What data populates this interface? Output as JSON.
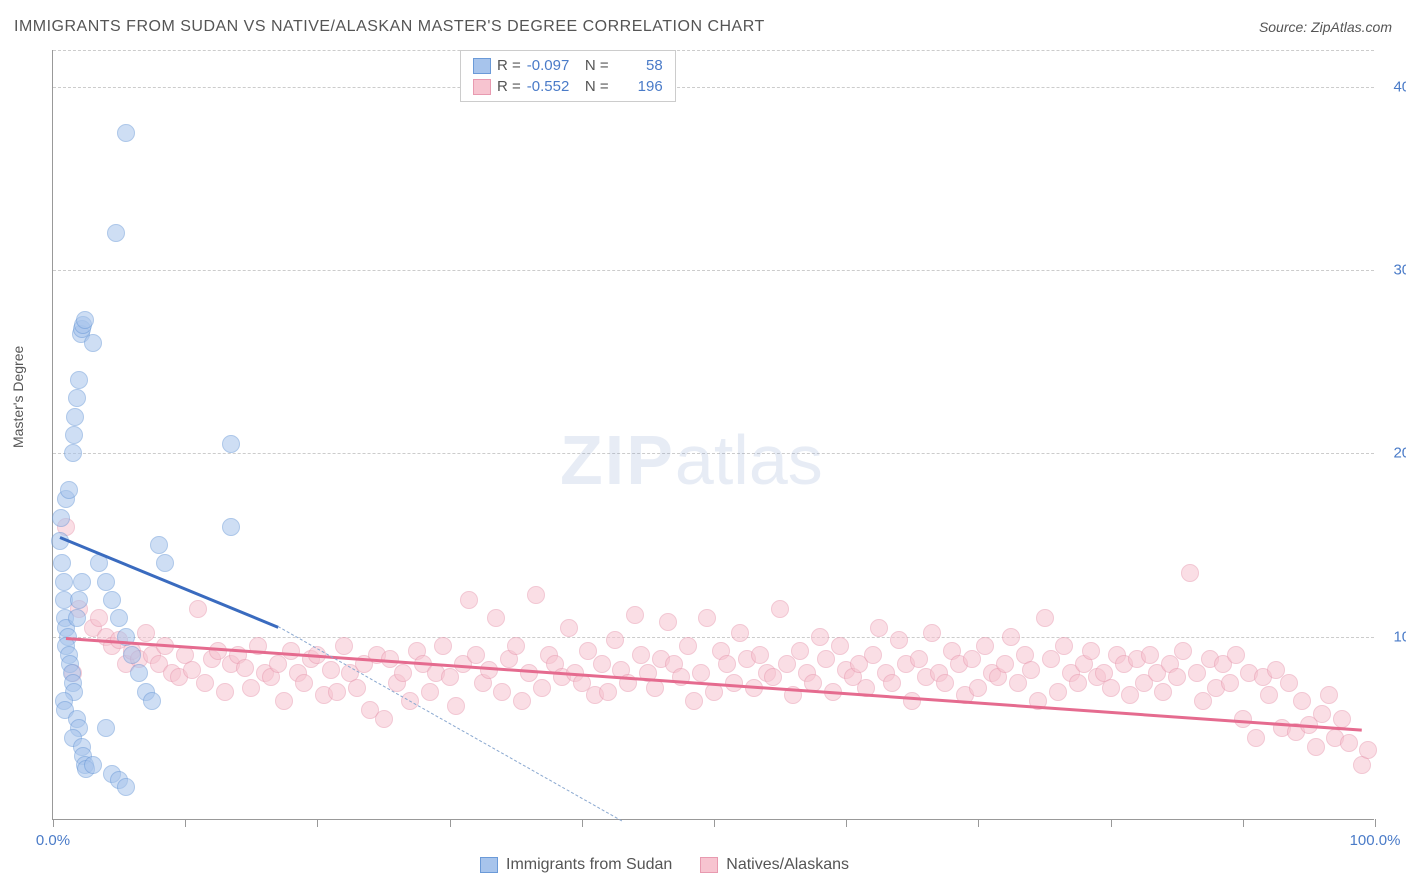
{
  "title": "IMMIGRANTS FROM SUDAN VS NATIVE/ALASKAN MASTER'S DEGREE CORRELATION CHART",
  "source": "Source: ZipAtlas.com",
  "ylabel": "Master's Degree",
  "watermark_zip": "ZIP",
  "watermark_atlas": "atlas",
  "chart": {
    "type": "scatter",
    "xlim": [
      0,
      100
    ],
    "ylim": [
      0,
      42
    ],
    "background_color": "#ffffff",
    "grid_color": "#cccccc",
    "axis_color": "#999999",
    "tick_label_color": "#4a7bc8",
    "yticks": [
      10,
      20,
      30,
      40
    ],
    "ytick_labels": [
      "10.0%",
      "20.0%",
      "30.0%",
      "40.0%"
    ],
    "xticks": [
      0,
      10,
      20,
      30,
      40,
      50,
      60,
      70,
      80,
      90,
      100
    ],
    "xtick_labels_shown": {
      "0": "0.0%",
      "100": "100.0%"
    },
    "marker_radius": 9,
    "marker_opacity": 0.55,
    "label_fontsize": 14,
    "tick_fontsize": 15,
    "title_fontsize": 16
  },
  "series": {
    "sudan": {
      "label": "Immigrants from Sudan",
      "fill_color": "#a7c4ec",
      "stroke_color": "#6b9ad8",
      "R": "-0.097",
      "N": "58",
      "trend": {
        "x1": 0.5,
        "y1": 15.5,
        "x2": 17,
        "y2": 10.6,
        "color": "#3a6bbf",
        "width": 3
      },
      "trend_dashed": {
        "x1": 17,
        "y1": 10.6,
        "x2": 43,
        "y2": 0,
        "color": "#8aa8d0"
      },
      "points": [
        [
          0.5,
          15.2
        ],
        [
          0.6,
          16.5
        ],
        [
          0.7,
          14
        ],
        [
          0.8,
          13
        ],
        [
          0.8,
          12
        ],
        [
          0.9,
          11
        ],
        [
          1,
          10.5
        ],
        [
          1.1,
          10
        ],
        [
          1,
          9.5
        ],
        [
          1.2,
          9
        ],
        [
          1.3,
          8.5
        ],
        [
          1.4,
          8
        ],
        [
          1,
          17.5
        ],
        [
          1.2,
          18
        ],
        [
          1.5,
          7.5
        ],
        [
          1.6,
          7
        ],
        [
          0.8,
          6.5
        ],
        [
          0.9,
          6
        ],
        [
          1.8,
          5.5
        ],
        [
          2,
          5
        ],
        [
          1.5,
          4.5
        ],
        [
          2.2,
          4
        ],
        [
          2.3,
          3.5
        ],
        [
          2.4,
          3
        ],
        [
          2.5,
          2.8
        ],
        [
          1.8,
          11
        ],
        [
          2,
          12
        ],
        [
          2.2,
          13
        ],
        [
          1.5,
          20
        ],
        [
          1.6,
          21
        ],
        [
          1.7,
          22
        ],
        [
          1.8,
          23
        ],
        [
          2,
          24
        ],
        [
          2.1,
          26.5
        ],
        [
          2.2,
          26.8
        ],
        [
          2.3,
          27
        ],
        [
          2.4,
          27.3
        ],
        [
          3,
          26
        ],
        [
          3.5,
          14
        ],
        [
          4,
          13
        ],
        [
          4.5,
          12
        ],
        [
          5,
          11
        ],
        [
          5.5,
          10
        ],
        [
          6,
          9
        ],
        [
          6.5,
          8
        ],
        [
          7,
          7
        ],
        [
          7.5,
          6.5
        ],
        [
          5.5,
          37.5
        ],
        [
          4.8,
          32
        ],
        [
          8,
          15
        ],
        [
          8.5,
          14
        ],
        [
          13.5,
          20.5
        ],
        [
          13.5,
          16
        ],
        [
          4,
          5
        ],
        [
          3,
          3
        ],
        [
          4.5,
          2.5
        ],
        [
          5,
          2.2
        ],
        [
          5.5,
          1.8
        ]
      ]
    },
    "natives": {
      "label": "Natives/Alaskans",
      "fill_color": "#f7c4d0",
      "stroke_color": "#e89ab0",
      "R": "-0.552",
      "N": "196",
      "trend": {
        "x1": 1,
        "y1": 10,
        "x2": 99,
        "y2": 5,
        "color": "#e56b8f",
        "width": 2.5
      },
      "points": [
        [
          1,
          16
        ],
        [
          1.5,
          8
        ],
        [
          2,
          11.5
        ],
        [
          3,
          10.5
        ],
        [
          3.5,
          11
        ],
        [
          4,
          10
        ],
        [
          4.5,
          9.5
        ],
        [
          5,
          9.8
        ],
        [
          5.5,
          8.5
        ],
        [
          6,
          9.2
        ],
        [
          6.5,
          8.8
        ],
        [
          7,
          10.2
        ],
        [
          7.5,
          9
        ],
        [
          8,
          8.5
        ],
        [
          8.5,
          9.5
        ],
        [
          9,
          8
        ],
        [
          9.5,
          7.8
        ],
        [
          10,
          9
        ],
        [
          10.5,
          8.2
        ],
        [
          11,
          11.5
        ],
        [
          11.5,
          7.5
        ],
        [
          12,
          8.8
        ],
        [
          12.5,
          9.2
        ],
        [
          13,
          7
        ],
        [
          13.5,
          8.5
        ],
        [
          14,
          9
        ],
        [
          14.5,
          8.3
        ],
        [
          15,
          7.2
        ],
        [
          15.5,
          9.5
        ],
        [
          16,
          8
        ],
        [
          16.5,
          7.8
        ],
        [
          17,
          8.5
        ],
        [
          17.5,
          6.5
        ],
        [
          18,
          9.2
        ],
        [
          18.5,
          8
        ],
        [
          19,
          7.5
        ],
        [
          19.5,
          8.8
        ],
        [
          20,
          9
        ],
        [
          20.5,
          6.8
        ],
        [
          21,
          8.2
        ],
        [
          21.5,
          7
        ],
        [
          22,
          9.5
        ],
        [
          22.5,
          8
        ],
        [
          23,
          7.2
        ],
        [
          23.5,
          8.5
        ],
        [
          24,
          6
        ],
        [
          24.5,
          9
        ],
        [
          25,
          5.5
        ],
        [
          25.5,
          8.8
        ],
        [
          26,
          7.5
        ],
        [
          26.5,
          8
        ],
        [
          27,
          6.5
        ],
        [
          27.5,
          9.2
        ],
        [
          28,
          8.5
        ],
        [
          28.5,
          7
        ],
        [
          29,
          8
        ],
        [
          29.5,
          9.5
        ],
        [
          30,
          7.8
        ],
        [
          30.5,
          6.2
        ],
        [
          31,
          8.5
        ],
        [
          31.5,
          12
        ],
        [
          32,
          9
        ],
        [
          32.5,
          7.5
        ],
        [
          33,
          8.2
        ],
        [
          33.5,
          11
        ],
        [
          34,
          7
        ],
        [
          34.5,
          8.8
        ],
        [
          35,
          9.5
        ],
        [
          35.5,
          6.5
        ],
        [
          36,
          8
        ],
        [
          36.5,
          12.3
        ],
        [
          37,
          7.2
        ],
        [
          37.5,
          9
        ],
        [
          38,
          8.5
        ],
        [
          38.5,
          7.8
        ],
        [
          39,
          10.5
        ],
        [
          39.5,
          8
        ],
        [
          40,
          7.5
        ],
        [
          40.5,
          9.2
        ],
        [
          41,
          6.8
        ],
        [
          41.5,
          8.5
        ],
        [
          42,
          7
        ],
        [
          42.5,
          9.8
        ],
        [
          43,
          8.2
        ],
        [
          43.5,
          7.5
        ],
        [
          44,
          11.2
        ],
        [
          44.5,
          9
        ],
        [
          45,
          8
        ],
        [
          45.5,
          7.2
        ],
        [
          46,
          8.8
        ],
        [
          46.5,
          10.8
        ],
        [
          47,
          8.5
        ],
        [
          47.5,
          7.8
        ],
        [
          48,
          9.5
        ],
        [
          48.5,
          6.5
        ],
        [
          49,
          8
        ],
        [
          49.5,
          11
        ],
        [
          50,
          7
        ],
        [
          50.5,
          9.2
        ],
        [
          51,
          8.5
        ],
        [
          51.5,
          7.5
        ],
        [
          52,
          10.2
        ],
        [
          52.5,
          8.8
        ],
        [
          53,
          7.2
        ],
        [
          53.5,
          9
        ],
        [
          54,
          8
        ],
        [
          54.5,
          7.8
        ],
        [
          55,
          11.5
        ],
        [
          55.5,
          8.5
        ],
        [
          56,
          6.8
        ],
        [
          56.5,
          9.2
        ],
        [
          57,
          8
        ],
        [
          57.5,
          7.5
        ],
        [
          58,
          10
        ],
        [
          58.5,
          8.8
        ],
        [
          59,
          7
        ],
        [
          59.5,
          9.5
        ],
        [
          60,
          8.2
        ],
        [
          60.5,
          7.8
        ],
        [
          61,
          8.5
        ],
        [
          61.5,
          7.2
        ],
        [
          62,
          9
        ],
        [
          62.5,
          10.5
        ],
        [
          63,
          8
        ],
        [
          63.5,
          7.5
        ],
        [
          64,
          9.8
        ],
        [
          64.5,
          8.5
        ],
        [
          65,
          6.5
        ],
        [
          65.5,
          8.8
        ],
        [
          66,
          7.8
        ],
        [
          66.5,
          10.2
        ],
        [
          67,
          8
        ],
        [
          67.5,
          7.5
        ],
        [
          68,
          9.2
        ],
        [
          68.5,
          8.5
        ],
        [
          69,
          6.8
        ],
        [
          69.5,
          8.8
        ],
        [
          70,
          7.2
        ],
        [
          70.5,
          9.5
        ],
        [
          71,
          8
        ],
        [
          71.5,
          7.8
        ],
        [
          72,
          8.5
        ],
        [
          72.5,
          10
        ],
        [
          73,
          7.5
        ],
        [
          73.5,
          9
        ],
        [
          74,
          8.2
        ],
        [
          74.5,
          6.5
        ],
        [
          75,
          11
        ],
        [
          75.5,
          8.8
        ],
        [
          76,
          7
        ],
        [
          76.5,
          9.5
        ],
        [
          77,
          8
        ],
        [
          77.5,
          7.5
        ],
        [
          78,
          8.5
        ],
        [
          78.5,
          9.2
        ],
        [
          79,
          7.8
        ],
        [
          79.5,
          8
        ],
        [
          80,
          7.2
        ],
        [
          80.5,
          9,
          8
        ],
        [
          81,
          8.5
        ],
        [
          81.5,
          6.8
        ],
        [
          82,
          8.8
        ],
        [
          82.5,
          7.5
        ],
        [
          83,
          9
        ],
        [
          83.5,
          8
        ],
        [
          84,
          7
        ],
        [
          84.5,
          8.5
        ],
        [
          85,
          7.8
        ],
        [
          85.5,
          9.2
        ],
        [
          86,
          13.5
        ],
        [
          86.5,
          8
        ],
        [
          87,
          6.5
        ],
        [
          87.5,
          8.8
        ],
        [
          88,
          7.2
        ],
        [
          88.5,
          8.5
        ],
        [
          89,
          7.5
        ],
        [
          89.5,
          9
        ],
        [
          90,
          5.5
        ],
        [
          90.5,
          8
        ],
        [
          91,
          4.5
        ],
        [
          91.5,
          7.8
        ],
        [
          92,
          6.8
        ],
        [
          92.5,
          8.2
        ],
        [
          93,
          5
        ],
        [
          93.5,
          7.5
        ],
        [
          94,
          4.8
        ],
        [
          94.5,
          6.5
        ],
        [
          95,
          5.2
        ],
        [
          95.5,
          4
        ],
        [
          96,
          5.8
        ],
        [
          96.5,
          6.8
        ],
        [
          97,
          4.5
        ],
        [
          97.5,
          5.5
        ],
        [
          98,
          4.2
        ],
        [
          99,
          3
        ],
        [
          99.5,
          3.8
        ]
      ]
    }
  },
  "legend_labels": {
    "R_prefix": "R =",
    "N_prefix": "N ="
  }
}
